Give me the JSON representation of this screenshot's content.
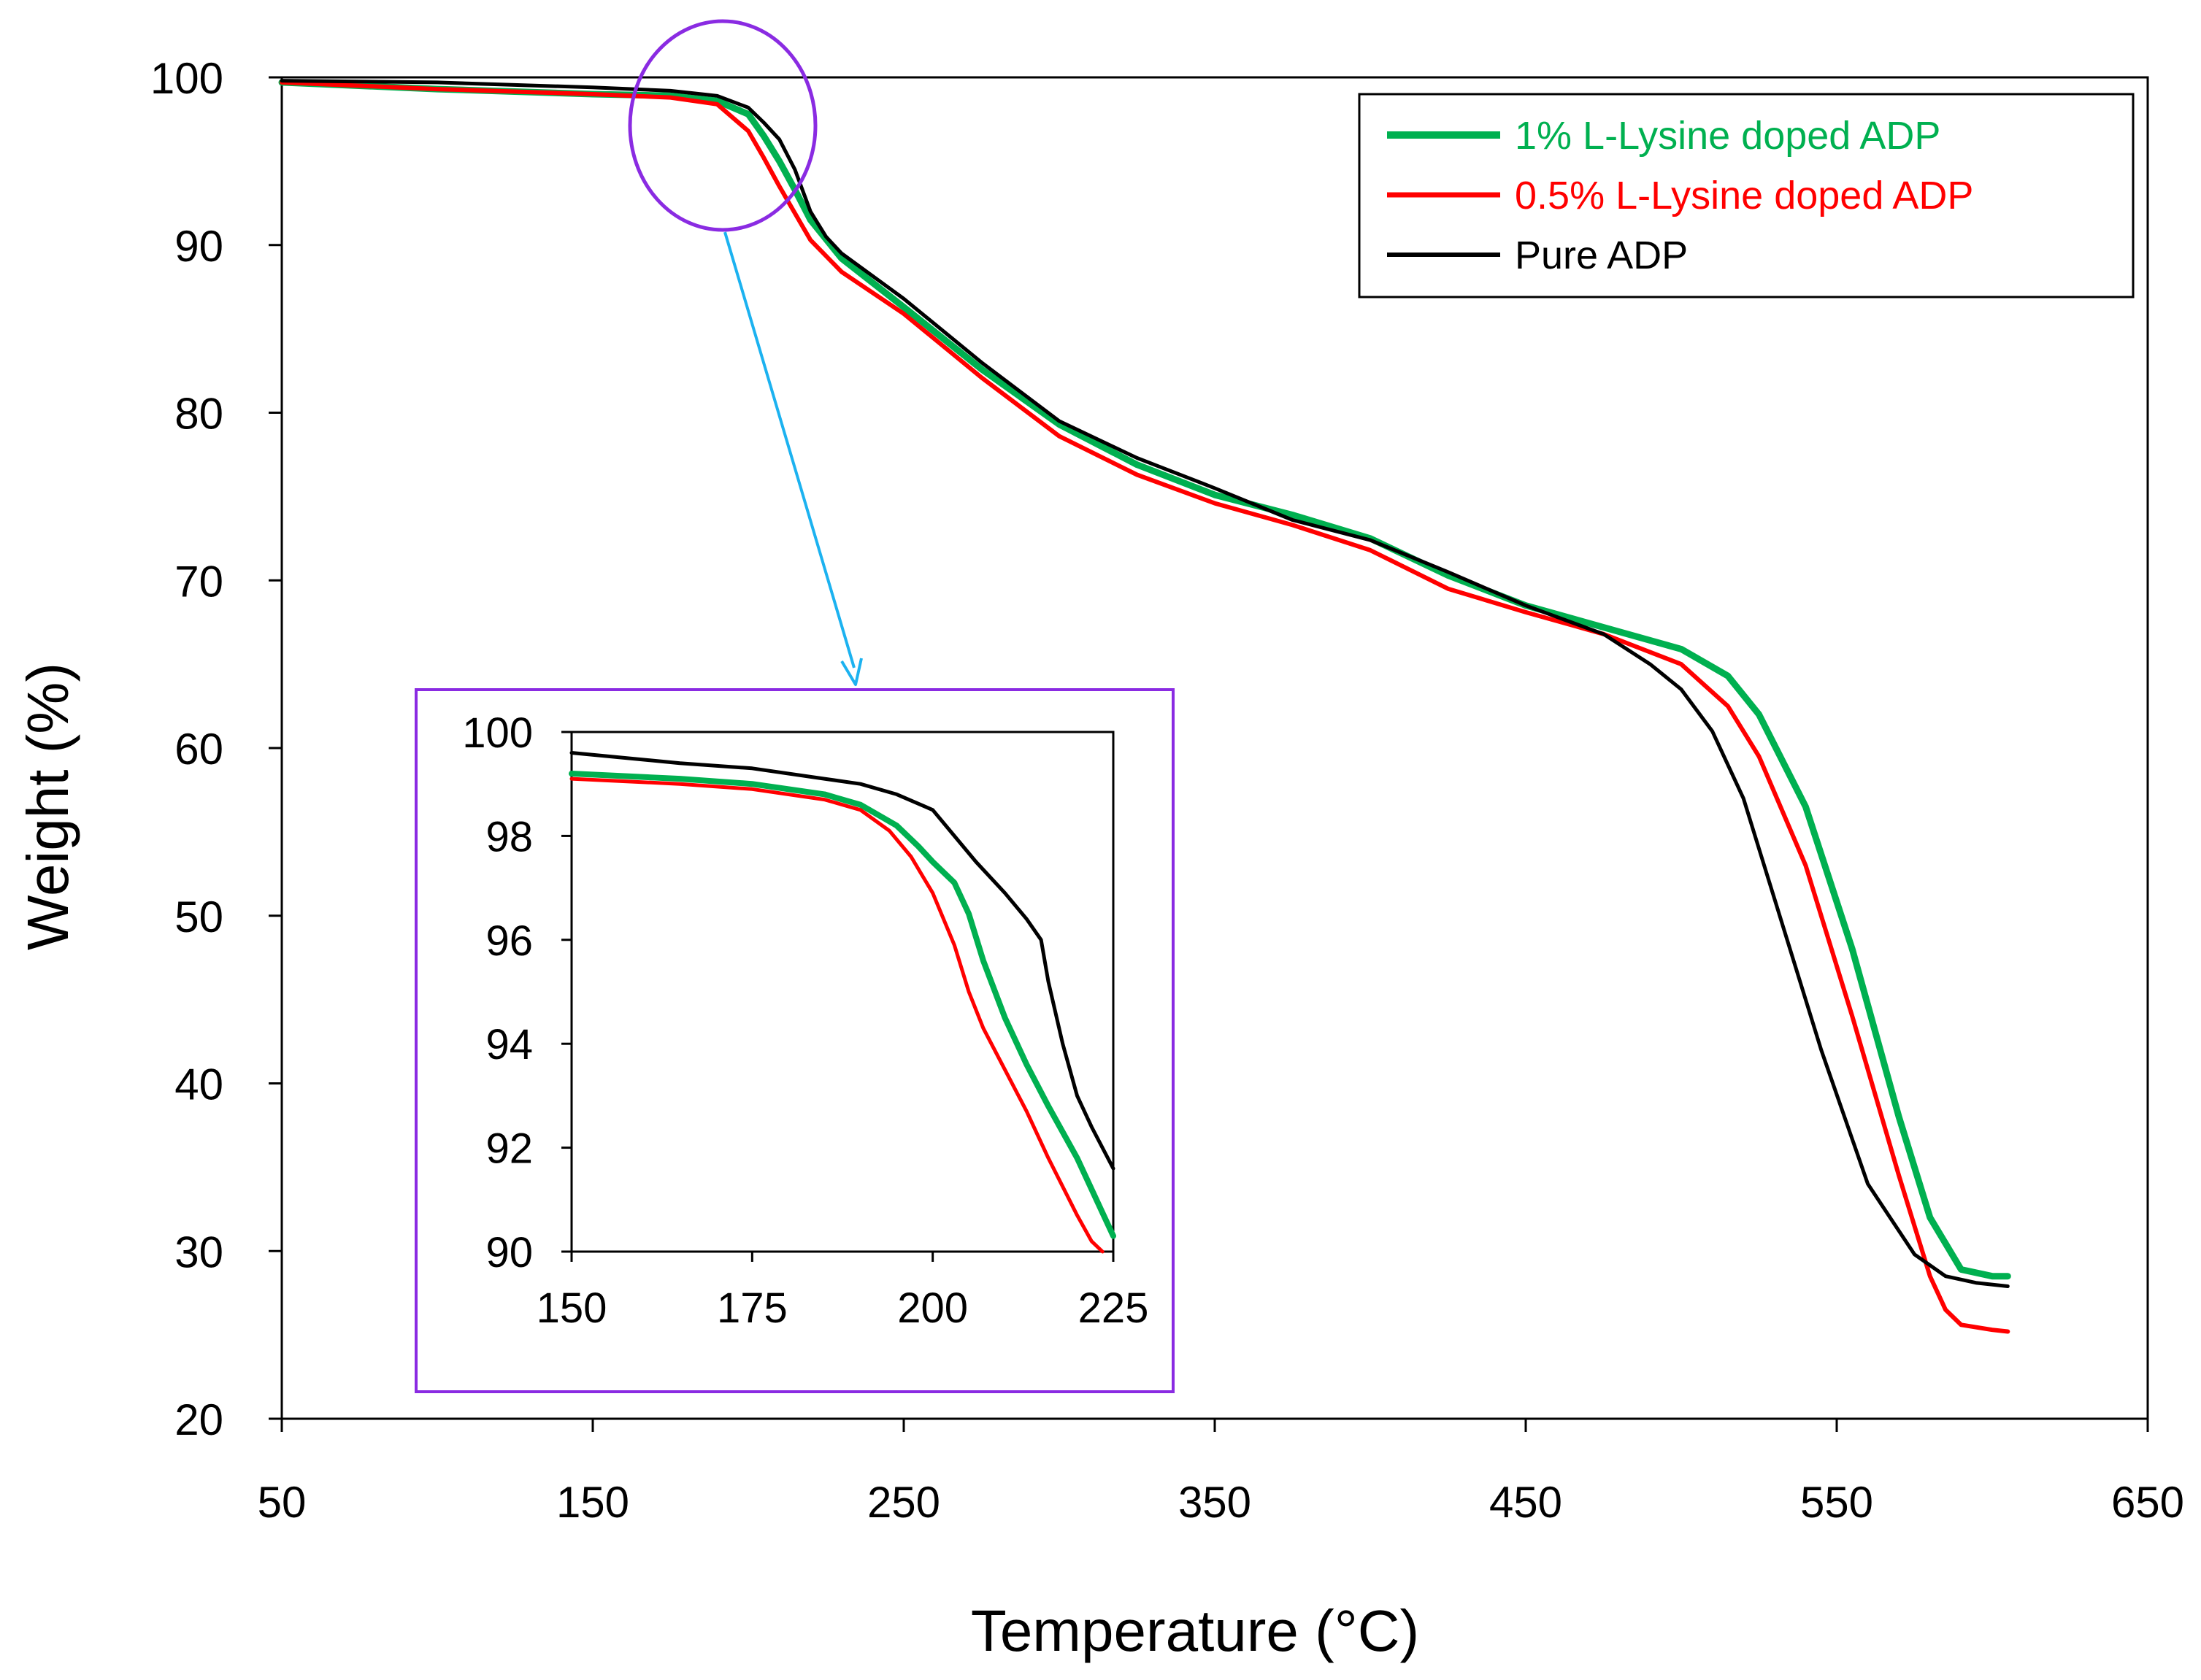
{
  "colors": {
    "one_pct": "#00b050",
    "half_pct": "#ff0000",
    "pure": "#000000",
    "zoom_marker": "#8a2be2",
    "arrow": "#1cb2f0"
  },
  "chart_data": [
    {
      "type": "line",
      "role": "main",
      "xlabel": "Temperature (°C)",
      "ylabel": "Weight (%)",
      "xlim": [
        50,
        650
      ],
      "ylim": [
        20,
        100
      ],
      "xticks": [
        50,
        150,
        250,
        350,
        450,
        550,
        650
      ],
      "yticks": [
        20,
        30,
        40,
        50,
        60,
        70,
        80,
        90,
        100
      ],
      "grid": false,
      "legend_position": "top-right",
      "series": [
        {
          "name": "1% L-Lysine doped ADP",
          "color_key": "one_pct",
          "x": [
            50,
            100,
            150,
            175,
            190,
            200,
            205,
            210,
            215,
            220,
            230,
            250,
            275,
            300,
            325,
            350,
            375,
            400,
            425,
            450,
            475,
            500,
            515,
            525,
            540,
            555,
            570,
            580,
            590,
            600,
            605
          ],
          "y": [
            99.7,
            99.3,
            99.0,
            98.9,
            98.6,
            97.8,
            96.5,
            95.0,
            93.3,
            91.5,
            89.2,
            86.3,
            82.6,
            79.3,
            76.9,
            75.1,
            73.9,
            72.5,
            70.3,
            68.5,
            67.2,
            65.9,
            64.3,
            62.0,
            56.5,
            48.0,
            38.0,
            32.0,
            28.9,
            28.5,
            28.5
          ]
        },
        {
          "name": "0.5% L-Lysine doped ADP",
          "color_key": "half_pct",
          "x": [
            50,
            100,
            150,
            175,
            190,
            200,
            205,
            210,
            215,
            220,
            230,
            250,
            275,
            300,
            325,
            350,
            375,
            400,
            425,
            450,
            475,
            500,
            515,
            525,
            540,
            555,
            570,
            580,
            585,
            590,
            600,
            605
          ],
          "y": [
            99.7,
            99.3,
            99.0,
            98.8,
            98.4,
            96.8,
            95.2,
            93.5,
            91.9,
            90.3,
            88.4,
            85.9,
            82.1,
            78.6,
            76.3,
            74.6,
            73.3,
            71.8,
            69.5,
            68.1,
            66.8,
            65.0,
            62.5,
            59.5,
            53.0,
            44.0,
            34.5,
            28.5,
            26.5,
            25.6,
            25.3,
            25.2
          ]
        },
        {
          "name": "Pure ADP",
          "color_key": "pure",
          "x": [
            50,
            100,
            150,
            175,
            190,
            200,
            205,
            210,
            215,
            220,
            225,
            230,
            250,
            275,
            300,
            325,
            350,
            375,
            400,
            425,
            450,
            475,
            490,
            500,
            510,
            520,
            530,
            545,
            560,
            575,
            585,
            595,
            605
          ],
          "y": [
            99.8,
            99.7,
            99.4,
            99.2,
            98.9,
            98.2,
            97.3,
            96.3,
            94.5,
            92.0,
            90.5,
            89.5,
            86.8,
            83.0,
            79.5,
            77.3,
            75.5,
            73.6,
            72.4,
            70.5,
            68.5,
            66.8,
            65.0,
            63.5,
            61.0,
            57.0,
            51.0,
            42.0,
            34.0,
            29.8,
            28.5,
            28.1,
            27.9
          ]
        }
      ]
    },
    {
      "type": "line",
      "role": "inset",
      "xlim": [
        150,
        225
      ],
      "ylim": [
        90,
        100
      ],
      "xticks": [
        150,
        175,
        200,
        225
      ],
      "yticks": [
        90,
        92,
        94,
        96,
        98,
        100
      ],
      "grid": false,
      "series": [
        {
          "name": "1% L-Lysine doped ADP",
          "color_key": "one_pct",
          "x": [
            150,
            165,
            175,
            185,
            190,
            195,
            198,
            200,
            203,
            205,
            207,
            210,
            213,
            216,
            220,
            222,
            225
          ],
          "y": [
            99.2,
            99.1,
            99.0,
            98.8,
            98.6,
            98.2,
            97.8,
            97.5,
            97.1,
            96.5,
            95.6,
            94.5,
            93.6,
            92.8,
            91.8,
            91.2,
            90.3
          ]
        },
        {
          "name": "0.5% L-Lysine doped ADP",
          "color_key": "half_pct",
          "x": [
            150,
            165,
            175,
            185,
            190,
            194,
            197,
            200,
            203,
            205,
            207,
            210,
            213,
            216,
            220,
            222,
            223.5
          ],
          "y": [
            99.1,
            99.0,
            98.9,
            98.7,
            98.5,
            98.1,
            97.6,
            96.9,
            95.9,
            95.0,
            94.3,
            93.5,
            92.7,
            91.8,
            90.7,
            90.2,
            90.0
          ]
        },
        {
          "name": "Pure ADP",
          "color_key": "pure",
          "x": [
            150,
            165,
            175,
            185,
            190,
            195,
            200,
            203,
            206,
            210,
            213,
            215,
            216,
            218,
            220,
            222,
            225
          ],
          "y": [
            99.6,
            99.4,
            99.3,
            99.1,
            99.0,
            98.8,
            98.5,
            98.0,
            97.5,
            96.9,
            96.4,
            96.0,
            95.2,
            94.0,
            93.0,
            92.4,
            91.6
          ]
        }
      ]
    }
  ]
}
